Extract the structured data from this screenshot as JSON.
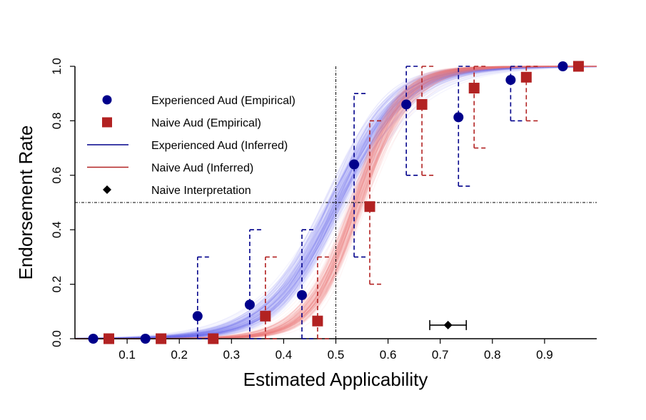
{
  "chart_data": {
    "type": "scatter",
    "xlabel": "Estimated Applicability",
    "ylabel": "Endorsement Rate",
    "xlim": [
      0,
      1
    ],
    "ylim": [
      0,
      1
    ],
    "xticks": [
      "0.1",
      "0.2",
      "0.3",
      "0.4",
      "0.5",
      "0.6",
      "0.7",
      "0.8",
      "0.9"
    ],
    "yticks": [
      "0.0",
      "0.2",
      "0.4",
      "0.6",
      "0.8",
      "1.0"
    ],
    "reference_lines": {
      "x": 0.5,
      "y": 0.5
    },
    "legend": {
      "placement": "top-left",
      "entries": [
        {
          "label": "Experienced Aud (Empirical)",
          "marker": "circle",
          "color": "#00008B"
        },
        {
          "label": "Naive Aud (Empirical)",
          "marker": "square",
          "color": "#B22222"
        },
        {
          "label": "Experienced Aud (Inferred)",
          "marker": "line",
          "color": "#00008B"
        },
        {
          "label": "Naive Aud (Inferred)",
          "marker": "line",
          "color": "#B22222"
        },
        {
          "label": "Naive Interpretation",
          "marker": "diamond",
          "color": "#000000"
        }
      ]
    },
    "series": [
      {
        "name": "Experienced Aud (Empirical)",
        "color": "#00008B",
        "points": [
          {
            "x": 0.035,
            "y": 0.0,
            "lo": null,
            "hi": null
          },
          {
            "x": 0.135,
            "y": 0.0,
            "lo": null,
            "hi": null
          },
          {
            "x": 0.235,
            "y": 0.083,
            "lo": 0.0,
            "hi": 0.3
          },
          {
            "x": 0.335,
            "y": 0.125,
            "lo": 0.0,
            "hi": 0.4
          },
          {
            "x": 0.435,
            "y": 0.16,
            "lo": 0.0,
            "hi": 0.4
          },
          {
            "x": 0.535,
            "y": 0.64,
            "lo": 0.3,
            "hi": 0.9
          },
          {
            "x": 0.635,
            "y": 0.86,
            "lo": 0.6,
            "hi": 1.0
          },
          {
            "x": 0.735,
            "y": 0.813,
            "lo": 0.56,
            "hi": 1.0
          },
          {
            "x": 0.835,
            "y": 0.95,
            "lo": 0.8,
            "hi": 1.0
          },
          {
            "x": 0.935,
            "y": 1.0,
            "lo": null,
            "hi": null
          }
        ]
      },
      {
        "name": "Naive Aud (Empirical)",
        "color": "#B22222",
        "points": [
          {
            "x": 0.065,
            "y": 0.0,
            "lo": null,
            "hi": null
          },
          {
            "x": 0.165,
            "y": 0.0,
            "lo": null,
            "hi": null
          },
          {
            "x": 0.265,
            "y": 0.0,
            "lo": null,
            "hi": null
          },
          {
            "x": 0.365,
            "y": 0.083,
            "lo": 0.0,
            "hi": 0.3
          },
          {
            "x": 0.465,
            "y": 0.065,
            "lo": 0.0,
            "hi": 0.3
          },
          {
            "x": 0.565,
            "y": 0.485,
            "lo": 0.2,
            "hi": 0.8
          },
          {
            "x": 0.665,
            "y": 0.86,
            "lo": 0.6,
            "hi": 1.0
          },
          {
            "x": 0.765,
            "y": 0.92,
            "lo": 0.7,
            "hi": 1.0
          },
          {
            "x": 0.865,
            "y": 0.96,
            "lo": 0.8,
            "hi": 1.0
          },
          {
            "x": 0.965,
            "y": 1.0,
            "lo": null,
            "hi": null
          }
        ]
      }
    ],
    "inferred_curves": [
      {
        "name": "Experienced Aud (Inferred)",
        "color": "#6f6ff5",
        "midpoint": 0.5,
        "slope": 16,
        "midpoint_spread": 0.03,
        "slope_spread": 4
      },
      {
        "name": "Naive Aud (Inferred)",
        "color": "#f57f7f",
        "midpoint": 0.54,
        "slope": 22,
        "midpoint_spread": 0.022,
        "slope_spread": 5
      }
    ],
    "naive_interpretation": {
      "x": 0.715,
      "y": 0.05,
      "lo": 0.68,
      "hi": 0.75,
      "color": "#000000"
    }
  }
}
